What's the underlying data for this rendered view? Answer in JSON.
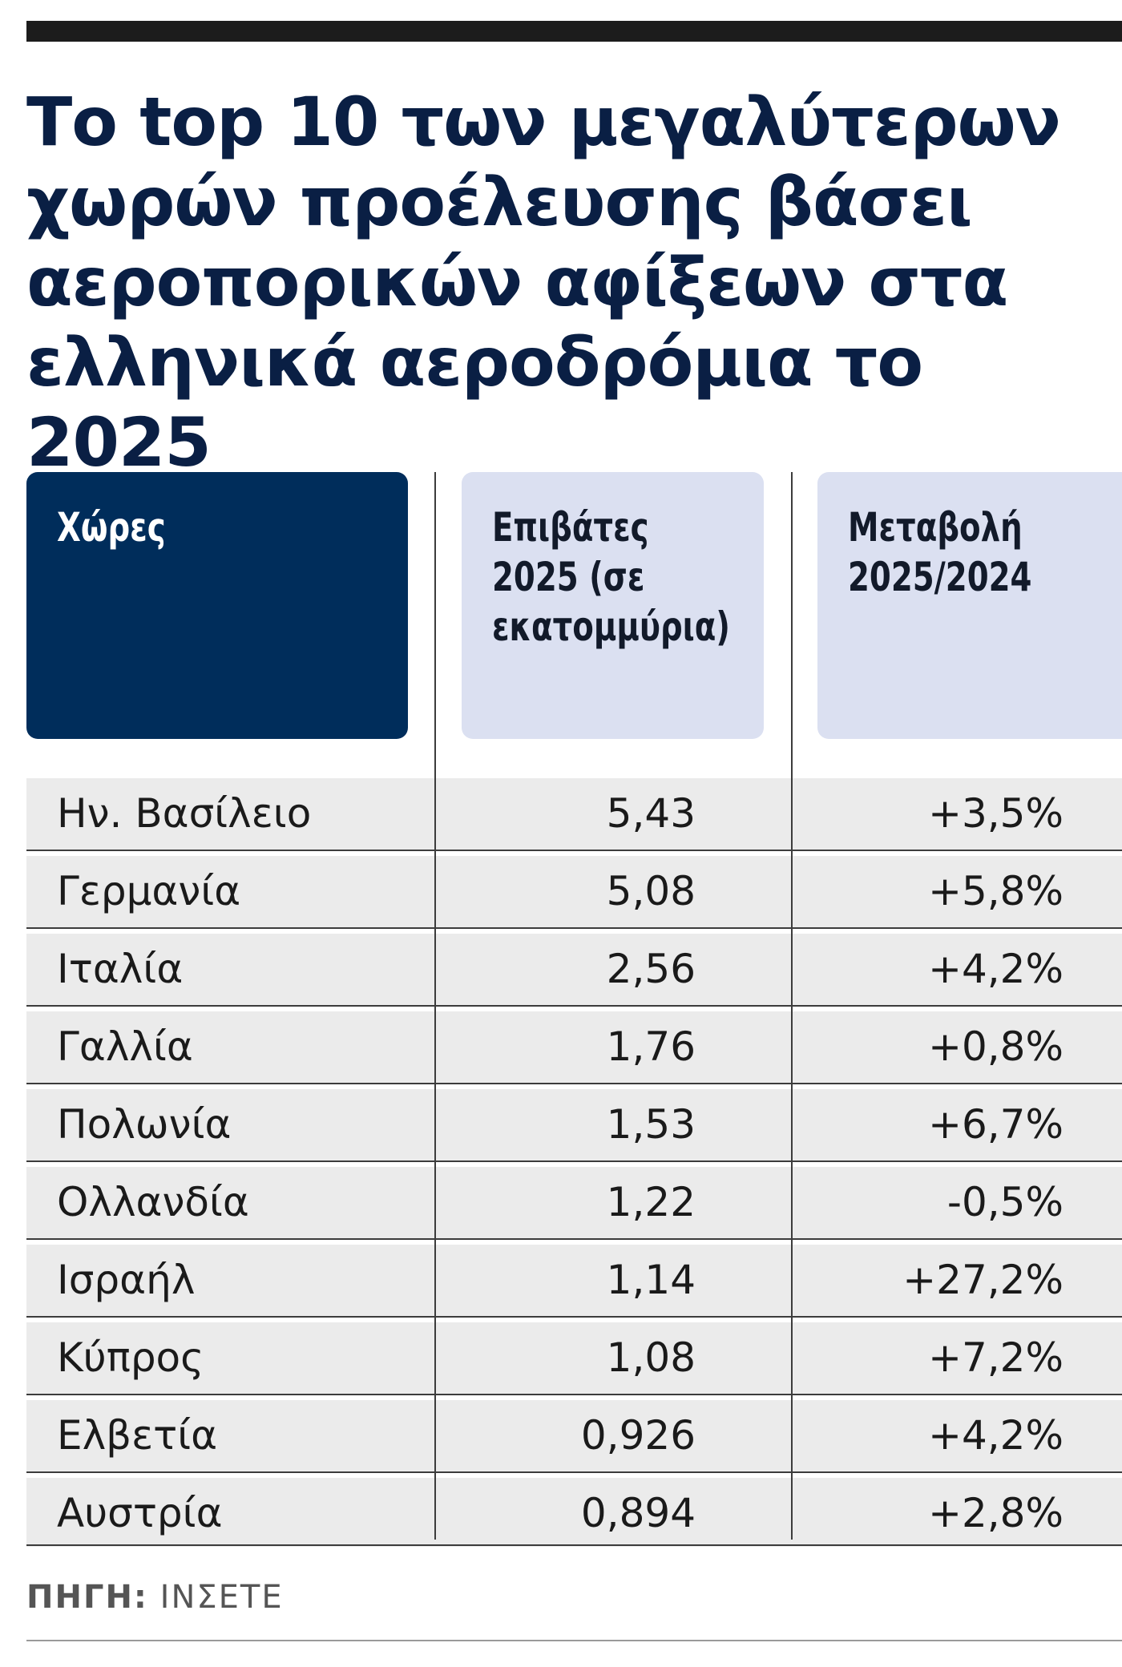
{
  "title": "Το top 10 των μεγαλύτερων\nχωρών προέλευσης βάσει\nαεροπορικών αφίξεων στα\nελληνικά αεροδρόμια το 2025",
  "table": {
    "headers": [
      "Χώρες",
      "Επιβάτες\n2025 (σε\nεκατομμύρια)",
      "Μεταβολή\n2025/2024"
    ],
    "rows": [
      {
        "country": "Ην. Βασίλειο",
        "passengers": "5,43",
        "change": "+3,5%"
      },
      {
        "country": "Γερμανία",
        "passengers": "5,08",
        "change": "+5,8%"
      },
      {
        "country": "Ιταλία",
        "passengers": "2,56",
        "change": "+4,2%"
      },
      {
        "country": "Γαλλία",
        "passengers": "1,76",
        "change": "+0,8%"
      },
      {
        "country": "Πολωνία",
        "passengers": "1,53",
        "change": "+6,7%"
      },
      {
        "country": "Ολλανδία",
        "passengers": "1,22",
        "change": "-0,5%"
      },
      {
        "country": "Ισραήλ",
        "passengers": "1,14",
        "change": "+27,2%"
      },
      {
        "country": "Κύπρος",
        "passengers": "1,08",
        "change": "+7,2%"
      },
      {
        "country": "Ελβετία",
        "passengers": "0,926",
        "change": "+4,2%"
      },
      {
        "country": "Αυστρία",
        "passengers": "0,894",
        "change": "+2,8%"
      }
    ]
  },
  "source": {
    "label": "ΠΗΓΗ:",
    "value": "ΙΝΣΕΤΕ"
  },
  "colors": {
    "title": "#0a1f44",
    "header_dark": "#002d5b",
    "header_light": "#dbe0f1",
    "row_band": "#ebebeb"
  },
  "chart_data": {
    "type": "table",
    "title": "Το top 10 των μεγαλύτερων χωρών προέλευσης βάσει αεροπορικών αφίξεων στα ελληνικά αεροδρόμια το 2025",
    "columns": [
      "Χώρες",
      "Επιβάτες 2025 (σε εκατομμύρια)",
      "Μεταβολή 2025/2024"
    ],
    "categories": [
      "Ην. Βασίλειο",
      "Γερμανία",
      "Ιταλία",
      "Γαλλία",
      "Πολωνία",
      "Ολλανδία",
      "Ισραήλ",
      "Κύπρος",
      "Ελβετία",
      "Αυστρία"
    ],
    "series": [
      {
        "name": "Επιβάτες 2025 (σε εκατομμύρια)",
        "values": [
          5.43,
          5.08,
          2.56,
          1.76,
          1.53,
          1.22,
          1.14,
          1.08,
          0.926,
          0.894
        ]
      },
      {
        "name": "Μεταβολή 2025/2024",
        "values": [
          3.5,
          5.8,
          4.2,
          0.8,
          6.7,
          -0.5,
          27.2,
          7.2,
          4.2,
          2.8
        ]
      }
    ],
    "source": "ΠΗΓΗ: ΙΝΣΕΤΕ"
  }
}
